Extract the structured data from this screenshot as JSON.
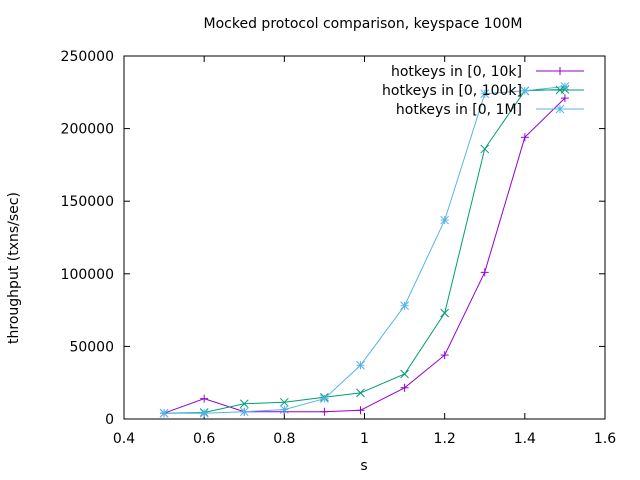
{
  "chart_data": {
    "type": "line",
    "title": "Mocked protocol comparison, keyspace 100M",
    "xlabel": "s",
    "ylabel": "throughput (txns/sec)",
    "xlim": [
      0.4,
      1.6
    ],
    "ylim": [
      0,
      250000
    ],
    "xticks": [
      "0.4",
      "0.6",
      "0.8",
      "1",
      "1.2",
      "1.4",
      "1.6"
    ],
    "yticks": [
      "0",
      "50000",
      "100000",
      "150000",
      "200000",
      "250000"
    ],
    "grid": false,
    "legend_position": "top-right",
    "series": [
      {
        "name": "hotkeys in [0, 10k]",
        "color": "#9400d3",
        "marker": "plus",
        "x": [
          0.5,
          0.6,
          0.7,
          0.8,
          0.9,
          0.99,
          1.1,
          1.2,
          1.3,
          1.4,
          1.5
        ],
        "y": [
          4000,
          14000,
          5000,
          5000,
          5000,
          6000,
          21500,
          44000,
          101000,
          194000,
          221000
        ]
      },
      {
        "name": "hotkeys in [0, 100k]",
        "color": "#009e73",
        "marker": "x",
        "x": [
          0.5,
          0.6,
          0.7,
          0.8,
          0.9,
          0.99,
          1.1,
          1.2,
          1.3,
          1.4,
          1.5
        ],
        "y": [
          4000,
          4500,
          10500,
          11500,
          15000,
          18000,
          31000,
          73000,
          186000,
          226000,
          227000
        ]
      },
      {
        "name": "hotkeys in [0, 1M]",
        "color": "#56b4e9",
        "marker": "star",
        "x": [
          0.5,
          0.6,
          0.7,
          0.8,
          0.9,
          0.99,
          1.1,
          1.2,
          1.3,
          1.4,
          1.5
        ],
        "y": [
          4000,
          4000,
          5000,
          6500,
          14000,
          37000,
          78000,
          137000,
          224000,
          226000,
          229000
        ]
      }
    ]
  }
}
